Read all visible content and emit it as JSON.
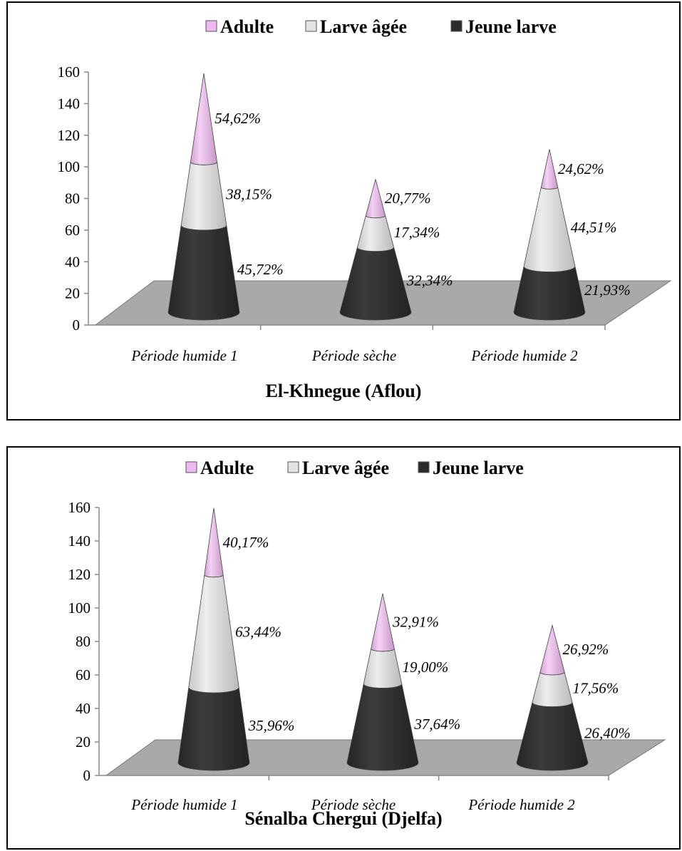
{
  "chart_data": [
    {
      "type": "bar",
      "shape": "stacked-cone-3d",
      "title": "El-Khnegue (Aflou)",
      "categories": [
        "Période humide 1",
        "Période sèche",
        "Période humide 2"
      ],
      "ylim": [
        0,
        160
      ],
      "yticks": [
        "0",
        "20",
        "40",
        "60",
        "80",
        "100",
        "120",
        "140",
        "160"
      ],
      "legend_position": "top",
      "series": [
        {
          "name": "Jeune larve",
          "color": "#2b2b2b",
          "values": [
            55,
            41,
            29
          ],
          "labels": [
            "45,72%",
            "32,34%",
            "21,93%"
          ]
        },
        {
          "name": "Larve âgée",
          "color": "#e3e3e3",
          "values": [
            40,
            20,
            50
          ],
          "labels": [
            "38,15%",
            "17,34%",
            "44,51%"
          ]
        },
        {
          "name": "Adulte",
          "color": "#f0b8f0",
          "values": [
            56,
            23,
            24
          ],
          "labels": [
            "54,62%",
            "20,77%",
            "24,62%"
          ]
        }
      ]
    },
    {
      "type": "bar",
      "shape": "stacked-cone-3d",
      "title": "Sénalba Chergui (Djelfa)",
      "categories": [
        "Période humide 1",
        "Période sèche",
        "Période humide 2"
      ],
      "ylim": [
        0,
        160
      ],
      "yticks": [
        "0",
        "20",
        "40",
        "60",
        "80",
        "100",
        "120",
        "140",
        "160"
      ],
      "legend_position": "top",
      "series": [
        {
          "name": "Jeune larve",
          "color": "#2b2b2b",
          "values": [
            45,
            47,
            36
          ],
          "labels": [
            "35,96%",
            "37,64%",
            "26,40%"
          ]
        },
        {
          "name": "Larve âgée",
          "color": "#e3e3e3",
          "values": [
            67,
            21,
            18
          ],
          "labels": [
            "63,44%",
            "19,00%",
            "17,56%"
          ]
        },
        {
          "name": "Adulte",
          "color": "#f0b8f0",
          "values": [
            40,
            33,
            28
          ],
          "labels": [
            "40,17%",
            "32,91%",
            "26,92%"
          ]
        }
      ]
    }
  ]
}
